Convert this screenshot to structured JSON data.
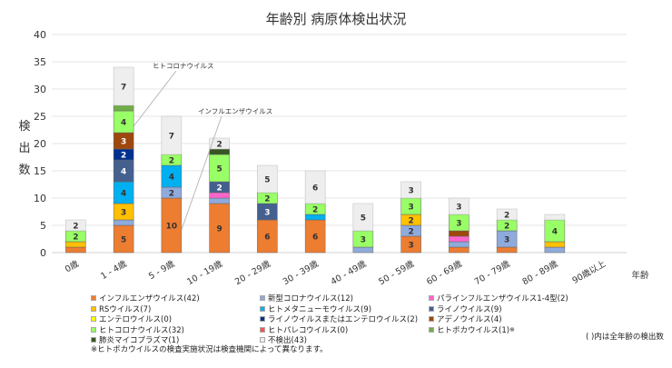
{
  "chart_data": {
    "type": "bar",
    "stacked": true,
    "title": "年齢別 病原体検出状況",
    "ylabel": "検出数",
    "xlabel": "年齢",
    "ylim": [
      0,
      40
    ],
    "yticks": [
      0,
      5,
      10,
      15,
      20,
      25,
      30,
      35,
      40
    ],
    "grid": true,
    "legend_position": "bottom",
    "categories": [
      "0歳",
      "1 - 4歳",
      "5 - 9歳",
      "10 - 19歳",
      "20 - 29歳",
      "30 - 39歳",
      "40 - 49歳",
      "50 - 59歳",
      "60 - 69歳",
      "70 - 79歳",
      "80 - 89歳",
      "90歳以上"
    ],
    "series": [
      {
        "name": "インフルエンザウイルス(42)",
        "color": "#ED7D31",
        "values": [
          1,
          5,
          10,
          9,
          6,
          6,
          0,
          3,
          1,
          1,
          0,
          0
        ]
      },
      {
        "name": "新型コロナウイルス(12)",
        "color": "#8FAADC",
        "values": [
          0,
          1,
          2,
          1,
          0,
          0,
          1,
          2,
          1,
          3,
          1,
          0
        ]
      },
      {
        "name": "パラインフルエンザウイルス1-4型(2)",
        "color": "#FF66CC",
        "values": [
          0,
          0,
          0,
          1,
          0,
          0,
          0,
          0,
          1,
          0,
          0,
          0
        ]
      },
      {
        "name": "RSウイルス(7)",
        "color": "#FFC000",
        "values": [
          1,
          3,
          0,
          0,
          0,
          0,
          0,
          2,
          0,
          0,
          1,
          0
        ]
      },
      {
        "name": "ヒトメタニューモウイルス(9)",
        "color": "#00B0F0",
        "values": [
          0,
          4,
          4,
          0,
          0,
          1,
          0,
          0,
          0,
          0,
          0,
          0
        ]
      },
      {
        "name": "ライノウイルス(9)",
        "color": "#44608F",
        "values": [
          0,
          4,
          0,
          2,
          3,
          0,
          0,
          0,
          0,
          0,
          0,
          0
        ]
      },
      {
        "name": "エンテロウイルス(0)",
        "color": "#FFFF00",
        "values": [
          0,
          0,
          0,
          0,
          0,
          0,
          0,
          0,
          0,
          0,
          0,
          0
        ]
      },
      {
        "name": "ライノウイルスまたはエンテロウイルス(2)",
        "color": "#00308F",
        "values": [
          0,
          2,
          0,
          0,
          0,
          0,
          0,
          0,
          0,
          0,
          0,
          0
        ]
      },
      {
        "name": "アデノウイルス(4)",
        "color": "#9E480E",
        "values": [
          0,
          3,
          0,
          0,
          0,
          0,
          0,
          0,
          1,
          0,
          0,
          0
        ]
      },
      {
        "name": "ヒトコロナウイルス(32)",
        "color": "#99FF66",
        "values": [
          2,
          4,
          2,
          5,
          2,
          2,
          3,
          3,
          3,
          2,
          4,
          0
        ]
      },
      {
        "name": "ヒトパレコウイルス(0)",
        "color": "#FF5050",
        "values": [
          0,
          0,
          0,
          0,
          0,
          0,
          0,
          0,
          0,
          0,
          0,
          0
        ]
      },
      {
        "name": "ヒトボカウイルス(1)",
        "color": "#70AD47",
        "values": [
          0,
          1,
          0,
          0,
          0,
          0,
          0,
          0,
          0,
          0,
          0,
          0
        ]
      },
      {
        "name": "肺炎マイコプラズマ(1)",
        "color": "#375623",
        "values": [
          0,
          0,
          0,
          1,
          0,
          0,
          0,
          0,
          0,
          0,
          0,
          0
        ]
      },
      {
        "name": "不検出(43)",
        "color": "#EEEEEE",
        "values": [
          2,
          7,
          7,
          2,
          5,
          6,
          5,
          3,
          3,
          2,
          1,
          0
        ]
      }
    ],
    "annotations": [
      {
        "text": "ヒトコロナウイルス",
        "category": "1 - 4歳",
        "series": "ヒトコロナウイルス(32)"
      },
      {
        "text": "インフルエンザウイルス",
        "category": "5 - 9歳",
        "series": "インフルエンザウイルス(42)"
      }
    ],
    "boca_mark": "※",
    "note_right": "( )内は全年齢の検出数",
    "footnote": "※ヒトボカウイルスの検査実施状況は検査機関によって異なります。"
  }
}
